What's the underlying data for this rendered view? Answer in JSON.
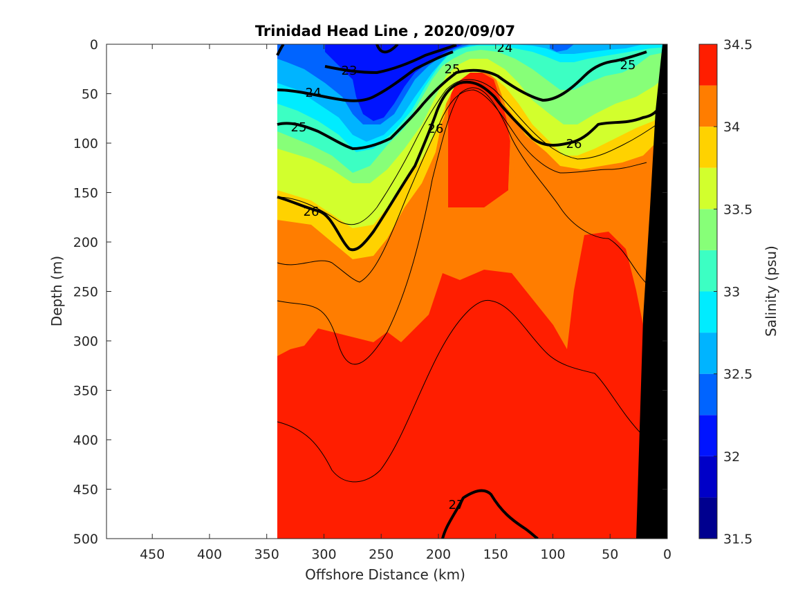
{
  "chart_data": {
    "type": "heatmap",
    "title": "Trinidad Head Line , 2020/09/07",
    "xlabel": "Offshore Distance (km)",
    "ylabel": "Depth (m)",
    "xlim": [
      490,
      0
    ],
    "ylim": [
      0,
      500
    ],
    "x_ticks": [
      "450",
      "400",
      "350",
      "300",
      "250",
      "200",
      "150",
      "100",
      "50",
      "0"
    ],
    "y_ticks": [
      "0",
      "50",
      "100",
      "150",
      "200",
      "250",
      "300",
      "350",
      "400",
      "450",
      "500"
    ],
    "data_extent_km": [
      340,
      0
    ],
    "colorbar": {
      "label": "Salinity (psu)",
      "range": [
        31.5,
        34.5
      ],
      "ticks": [
        "31.5",
        "32",
        "32.5",
        "33",
        "33.5",
        "34",
        "34.5"
      ],
      "levels": [
        31.5,
        31.75,
        32.0,
        32.25,
        32.5,
        32.75,
        33.0,
        33.25,
        33.5,
        33.75,
        34.0,
        34.25,
        34.5
      ],
      "colors": [
        "#00008f",
        "#0000c8",
        "#0014ff",
        "#0064ff",
        "#00b4ff",
        "#00ecff",
        "#3cffc3",
        "#87ff78",
        "#d2ff2d",
        "#ffd200",
        "#ff7d00",
        "#ff1e00",
        "#d20000"
      ]
    },
    "salinity_regions": [
      {
        "level": 34.0,
        "description": "deep water, mostly below 300 m"
      },
      {
        "level": 34.0,
        "description": "core near 170 km, 60–150 m depth"
      },
      {
        "level": 34.0,
        "description": "core near 75 km, 190–300 m depth"
      },
      {
        "level": 33.75,
        "description": "intermediate water"
      },
      {
        "level": 32.0,
        "description": "low salinity surface near 220–260 km"
      }
    ],
    "density_contour_labels": [
      "23",
      "24",
      "25",
      "26",
      "24",
      "25",
      "26",
      "25",
      "26",
      "27"
    ],
    "bottom_topography": "black wedge at the coastal (right) edge"
  }
}
